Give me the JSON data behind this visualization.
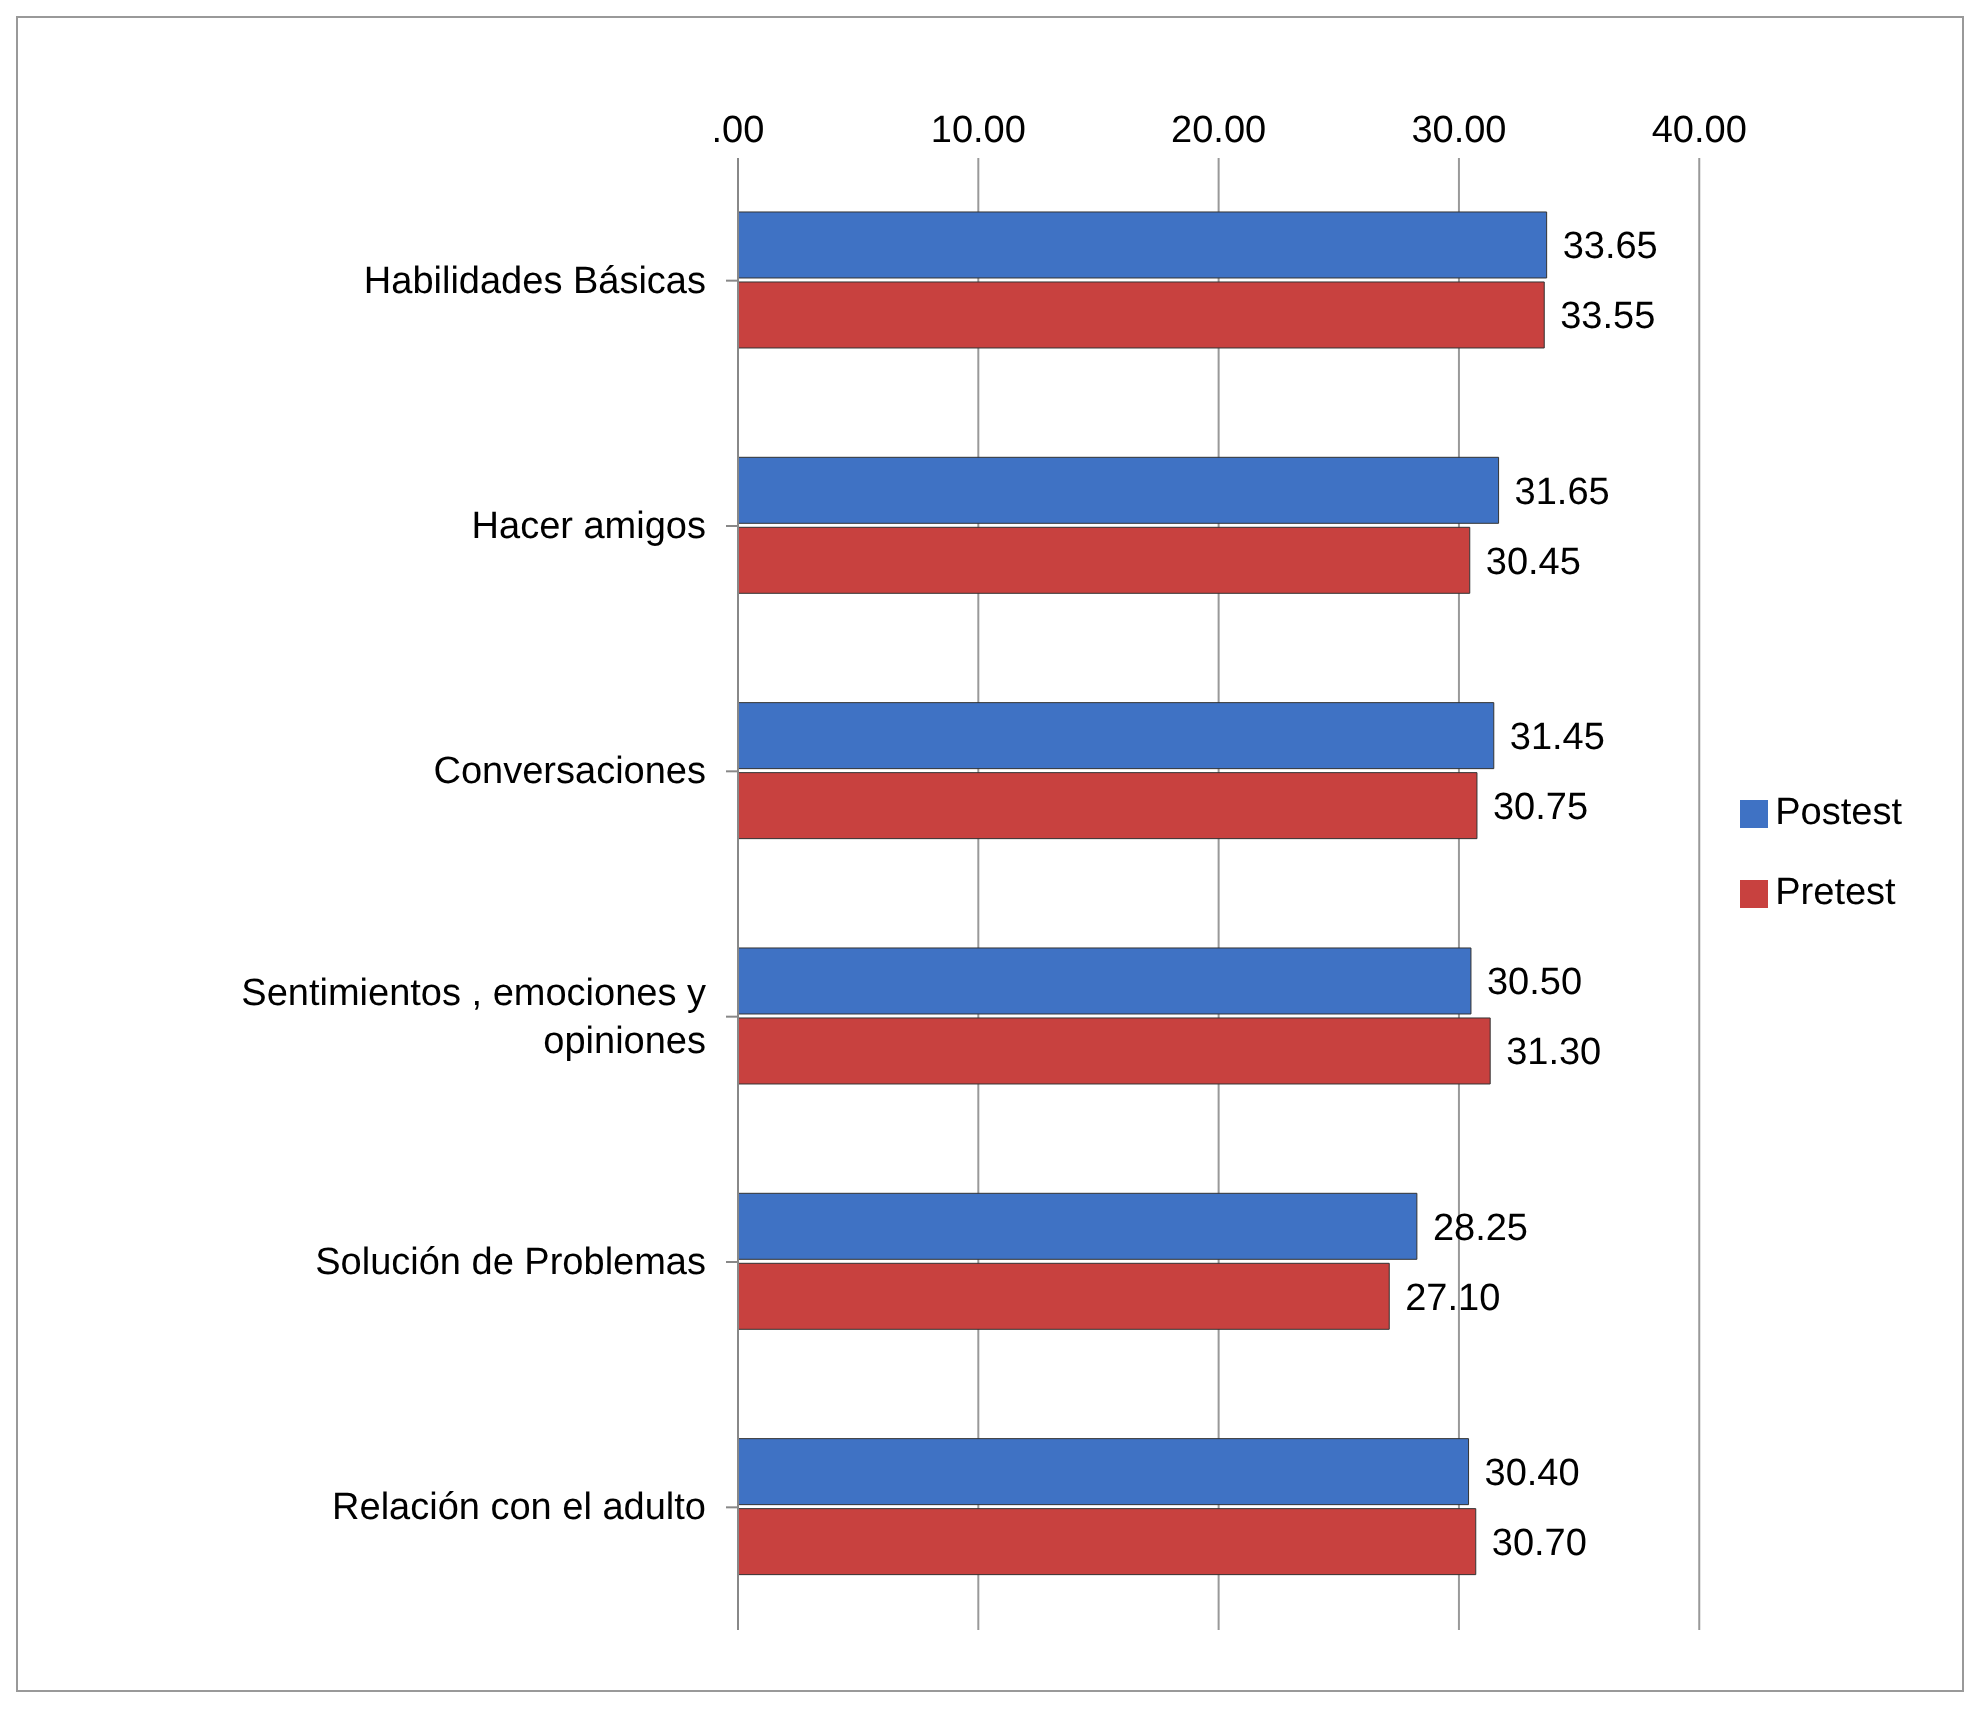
{
  "chart_data": {
    "type": "bar",
    "orientation": "horizontal",
    "categories": [
      "Habilidades Básicas",
      "Hacer amigos",
      "Conversaciones",
      "Sentimientos , emociones  y opiniones",
      "Solución de Problemas",
      "Relación con el adulto"
    ],
    "series": [
      {
        "name": "Postest",
        "color": "#3f72c4",
        "values": [
          33.65,
          31.65,
          31.45,
          30.5,
          28.25,
          30.4
        ],
        "value_labels": [
          "33.65",
          "31.65",
          "31.45",
          "30.50",
          "28.25",
          "30.40"
        ]
      },
      {
        "name": "Pretest",
        "color": "#c8413f",
        "values": [
          33.55,
          30.45,
          30.75,
          31.3,
          27.1,
          30.7
        ],
        "value_labels": [
          "33.55",
          "30.45",
          "30.75",
          "31.30",
          "27.10",
          "30.70"
        ]
      }
    ],
    "xlim": [
      0,
      40
    ],
    "xticks": [
      {
        "value": 0,
        "label": ".00"
      },
      {
        "value": 10,
        "label": "10.00"
      },
      {
        "value": 20,
        "label": "20.00"
      },
      {
        "value": 30,
        "label": "30.00"
      },
      {
        "value": 40,
        "label": "40.00"
      }
    ],
    "grid": "x",
    "legend": "right"
  }
}
